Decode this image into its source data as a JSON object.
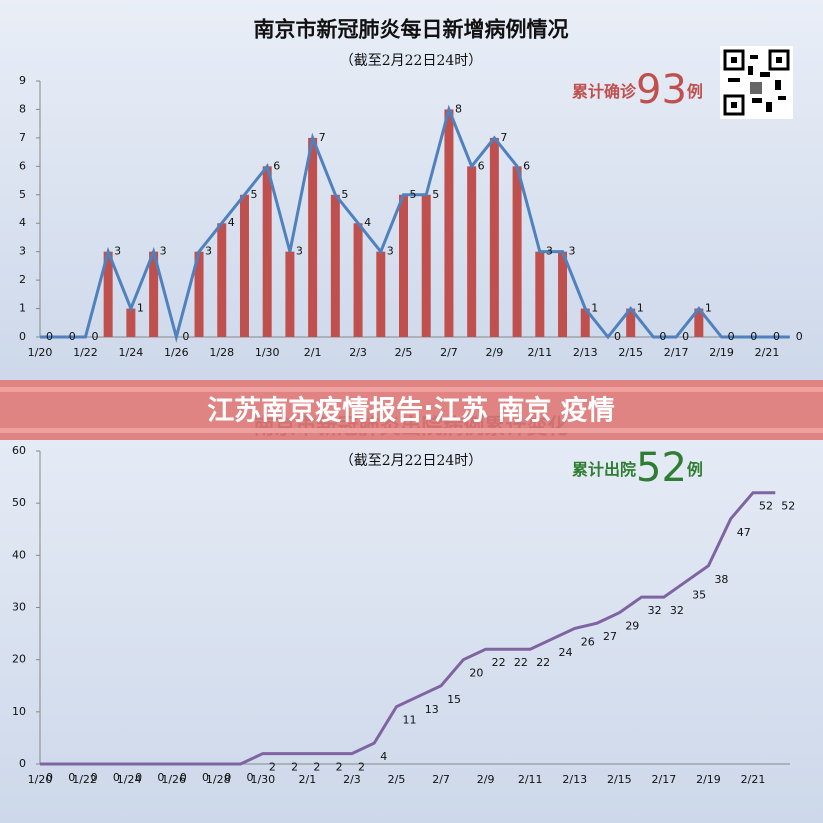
{
  "banner": "江苏南京疫情报告:江苏 南京 疫情",
  "chart_data": [
    {
      "type": "bar",
      "title": "南京市新冠肺炎每日新增病例情况",
      "subtitle": "（截至2月22日24时）",
      "annotation": {
        "prefix": "累计确诊",
        "number": "93",
        "suffix": "例"
      },
      "categories": [
        "1/20",
        null,
        "1/22",
        null,
        "1/24",
        null,
        "1/26",
        null,
        "1/28",
        null,
        "1/30",
        null,
        "2/1",
        null,
        "2/3",
        null,
        "2/5",
        null,
        "2/7",
        null,
        "2/9",
        null,
        "2/11",
        null,
        "2/13",
        null,
        "2/15",
        null,
        "2/17",
        null,
        "2/19",
        null,
        "2/21",
        null
      ],
      "values": [
        0,
        0,
        0,
        3,
        1,
        3,
        0,
        3,
        4,
        5,
        6,
        3,
        7,
        5,
        4,
        3,
        5,
        5,
        8,
        6,
        7,
        6,
        3,
        3,
        1,
        0,
        1,
        0,
        0,
        1,
        0,
        0,
        0,
        0
      ],
      "color": "#c0504d",
      "line_color": "#4f81bd",
      "ylim": [
        0,
        9
      ],
      "yticks": [
        0,
        1,
        2,
        3,
        4,
        5,
        6,
        7,
        8,
        9
      ]
    },
    {
      "type": "line",
      "title": "南京市新冠肺炎出院病例累计变化",
      "subtitle": "（截至2月22日24时）",
      "annotation": {
        "prefix": "累计出院",
        "number": "52",
        "suffix": "例"
      },
      "categories": [
        "1/20",
        null,
        "1/22",
        null,
        "1/24",
        null,
        "1/26",
        null,
        "1/28",
        null,
        "1/30",
        null,
        "2/1",
        null,
        "2/3",
        null,
        "2/5",
        null,
        "2/7",
        null,
        "2/9",
        null,
        "2/11",
        null,
        "2/13",
        null,
        "2/15",
        null,
        "2/17",
        null,
        "2/19",
        null,
        "2/21",
        null
      ],
      "values": [
        0,
        0,
        0,
        0,
        0,
        0,
        0,
        0,
        0,
        0,
        2,
        2,
        2,
        2,
        2,
        4,
        11,
        13,
        15,
        20,
        22,
        22,
        22,
        24,
        26,
        27,
        29,
        32,
        32,
        35,
        38,
        47,
        52,
        52
      ],
      "color": "#8064a2",
      "ylim": [
        0,
        60
      ],
      "yticks": [
        0,
        10,
        20,
        30,
        40,
        50,
        60
      ]
    }
  ]
}
